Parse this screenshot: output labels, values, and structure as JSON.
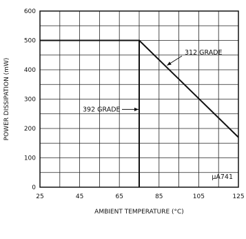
{
  "chart_data": {
    "type": "line",
    "xlabel": "AMBIENT TEMPERATURE (°C)",
    "ylabel": "POWER DISSIPATION (mW)",
    "xlim": [
      25,
      125
    ],
    "ylim": [
      0,
      600
    ],
    "x_ticks": [
      25,
      45,
      65,
      85,
      105,
      125
    ],
    "y_ticks": [
      0,
      100,
      200,
      300,
      400,
      500,
      600
    ],
    "grid": true,
    "series": [
      {
        "name": "392 GRADE",
        "x": [
          25,
          75,
          75
        ],
        "y": [
          500,
          500,
          0
        ]
      },
      {
        "name": "312 GRADE",
        "x": [
          25,
          75,
          125
        ],
        "y": [
          500,
          500,
          170
        ]
      }
    ],
    "annotations": [
      {
        "text": "392 GRADE",
        "x": 75,
        "y": 265
      },
      {
        "text": "312 GRADE",
        "x": 89,
        "y": 415
      },
      {
        "text": "μA741",
        "location": "bottom-right"
      }
    ]
  }
}
